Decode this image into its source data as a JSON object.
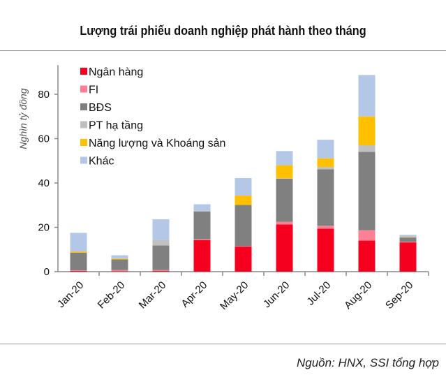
{
  "chart_data": {
    "type": "bar",
    "stacked": true,
    "title": "Lượng trái phiếu doanh nghiệp phát hành theo tháng",
    "ylabel": "Nghìn tỷ đồng",
    "xlabel": "",
    "ylim": [
      0,
      90
    ],
    "yticks": [
      0,
      20,
      40,
      60,
      80
    ],
    "grid": false,
    "legend_position": "top-left",
    "categories": [
      "Jan-20",
      "Feb-20",
      "Mar-20",
      "Apr-20",
      "May-20",
      "Jun-20",
      "Jul-20",
      "Aug-20",
      "Sep-20"
    ],
    "series": [
      {
        "name": "Ngân hàng",
        "color": "#f5001f",
        "values": [
          0.3,
          0.2,
          0.3,
          14.2,
          11.3,
          21.3,
          19.4,
          14.0,
          13.2
        ]
      },
      {
        "name": "FI",
        "color": "#ff8095",
        "values": [
          0.3,
          0.5,
          0.4,
          0.4,
          0.2,
          1.2,
          1.3,
          4.7,
          0.3
        ]
      },
      {
        "name": "BĐS",
        "color": "#808080",
        "values": [
          7.9,
          4.8,
          11.1,
          12.5,
          18.6,
          19.4,
          25.5,
          35.3,
          1.9
        ]
      },
      {
        "name": "PT hạ tầng",
        "color": "#c0c0c0",
        "values": [
          0,
          0,
          2.4,
          0.3,
          0,
          0.2,
          1.0,
          3.0,
          0
        ]
      },
      {
        "name": "Năng lượng và Khoáng sản",
        "color": "#ffc000",
        "values": [
          0.5,
          0.4,
          0,
          0,
          4.2,
          5.9,
          3.9,
          13.0,
          0.2
        ]
      },
      {
        "name": "Khác",
        "color": "#b4c7e7",
        "values": [
          8.5,
          1.5,
          9.4,
          3.0,
          7.9,
          6.4,
          8.4,
          18.7,
          1.0
        ]
      }
    ]
  },
  "source": "Nguồn: HNX, SSI tổng hợp"
}
